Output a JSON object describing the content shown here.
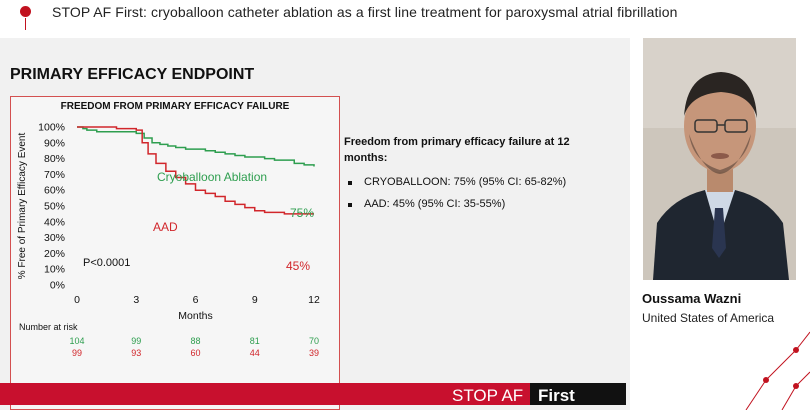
{
  "header": {
    "title": "STOP AF First: cryoballoon catheter ablation as a first line treatment for paroxysmal atrial fibrillation"
  },
  "slide": {
    "title": "PRIMARY EFFICACY ENDPOINT",
    "chart_title": "FREEDOM FROM PRIMARY EFFICACY FAILURE",
    "summary_heading": "Freedom from primary efficacy failure at 12 months:",
    "bullets": [
      "CRYOBALLOON: 75% (95% CI: 65-82%)",
      "AAD: 45% (95% CI: 35-55%)"
    ],
    "footer_text": "STOP AF",
    "footer_emphasis": "First"
  },
  "speaker": {
    "name": "Oussama Wazni",
    "country": "United States of America"
  },
  "colors": {
    "brand_red": "#c8102e",
    "cryo_green": "#2e9e4f",
    "aad_red": "#d1262b"
  },
  "chart_data": {
    "type": "line",
    "title": "FREEDOM FROM PRIMARY EFFICACY FAILURE",
    "xlabel": "Months",
    "ylabel": "% Free of Primary Efficacy Event",
    "xlim": [
      0,
      12
    ],
    "ylim": [
      0,
      100
    ],
    "xticks": [
      0,
      3,
      6,
      9,
      12
    ],
    "yticks": [
      0,
      10,
      20,
      30,
      40,
      50,
      60,
      70,
      80,
      90,
      100
    ],
    "ytick_labels": [
      "0%",
      "10%",
      "20%",
      "30%",
      "40%",
      "50%",
      "60%",
      "70%",
      "80%",
      "90%",
      "100%"
    ],
    "series": [
      {
        "name": "Cryoballoon Ablation",
        "end_label": "75%",
        "color": "#2e9e4f",
        "x": [
          0,
          0.3,
          0.5,
          1,
          1.5,
          2,
          3,
          3.4,
          3.8,
          4.2,
          4.6,
          5,
          5.5,
          6,
          6.5,
          7,
          7.5,
          8,
          8.5,
          9,
          9.5,
          10,
          10.5,
          11,
          11.5,
          12
        ],
        "y": [
          100,
          99,
          98,
          97,
          97,
          97,
          96,
          93,
          90,
          89,
          88,
          87,
          86,
          86,
          85,
          84,
          83,
          82,
          81,
          81,
          80,
          79,
          79,
          77,
          76,
          75
        ]
      },
      {
        "name": "AAD",
        "color": "#d1262b",
        "end_label": "45%",
        "x": [
          0,
          0.5,
          1,
          2,
          3,
          3.3,
          3.6,
          4,
          4.5,
          5,
          5.5,
          6,
          6.5,
          7,
          7.5,
          8,
          8.5,
          9,
          9.5,
          10,
          10.5,
          11,
          11.5,
          12
        ],
        "y": [
          100,
          100,
          100,
          99,
          98,
          90,
          83,
          77,
          72,
          68,
          64,
          60,
          58,
          56,
          53,
          51,
          49,
          47,
          46,
          46,
          45,
          45,
          45,
          45
        ]
      }
    ],
    "annotation": "P<0.0001",
    "risk_table": {
      "label": "Number at risk",
      "cryo": [
        "104",
        "99",
        "88",
        "81",
        "70"
      ],
      "aad": [
        "99",
        "93",
        "60",
        "44",
        "39"
      ]
    }
  }
}
